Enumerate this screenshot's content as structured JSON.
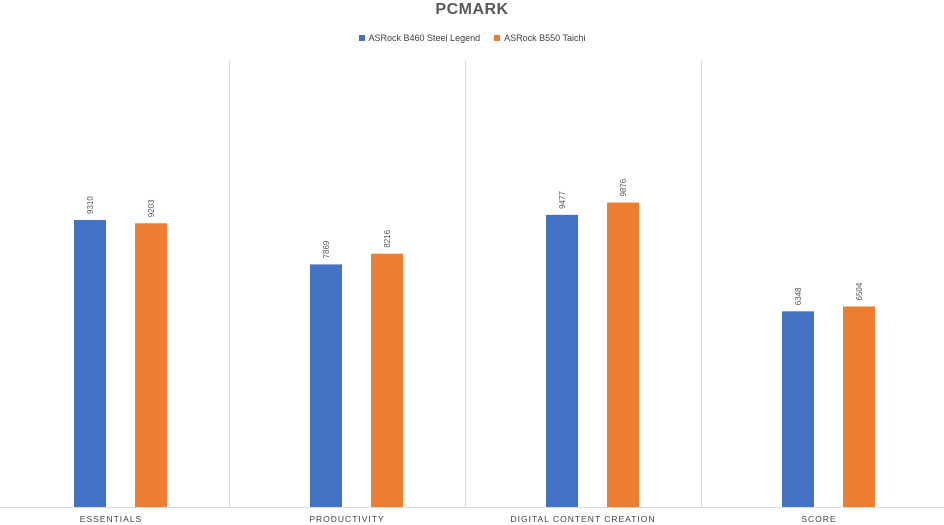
{
  "chart_data": {
    "type": "bar",
    "title": "PCMARK",
    "categories": [
      "ESSENTIALS",
      "PRODUCTIVITY",
      "DIGITAL CONTENT CREATION",
      "SCORE"
    ],
    "series": [
      {
        "name": "ASRock B460 Steel Legend",
        "color": "#4472C4",
        "values": [
          9310,
          7869,
          9477,
          6348
        ]
      },
      {
        "name": "ASRock B550 Taichi",
        "color": "#ED7D31",
        "values": [
          9203,
          8216,
          9876,
          6504
        ]
      }
    ],
    "ylim": [
      0,
      14500
    ],
    "grid": false,
    "legend_position": "top",
    "data_labels": true
  }
}
